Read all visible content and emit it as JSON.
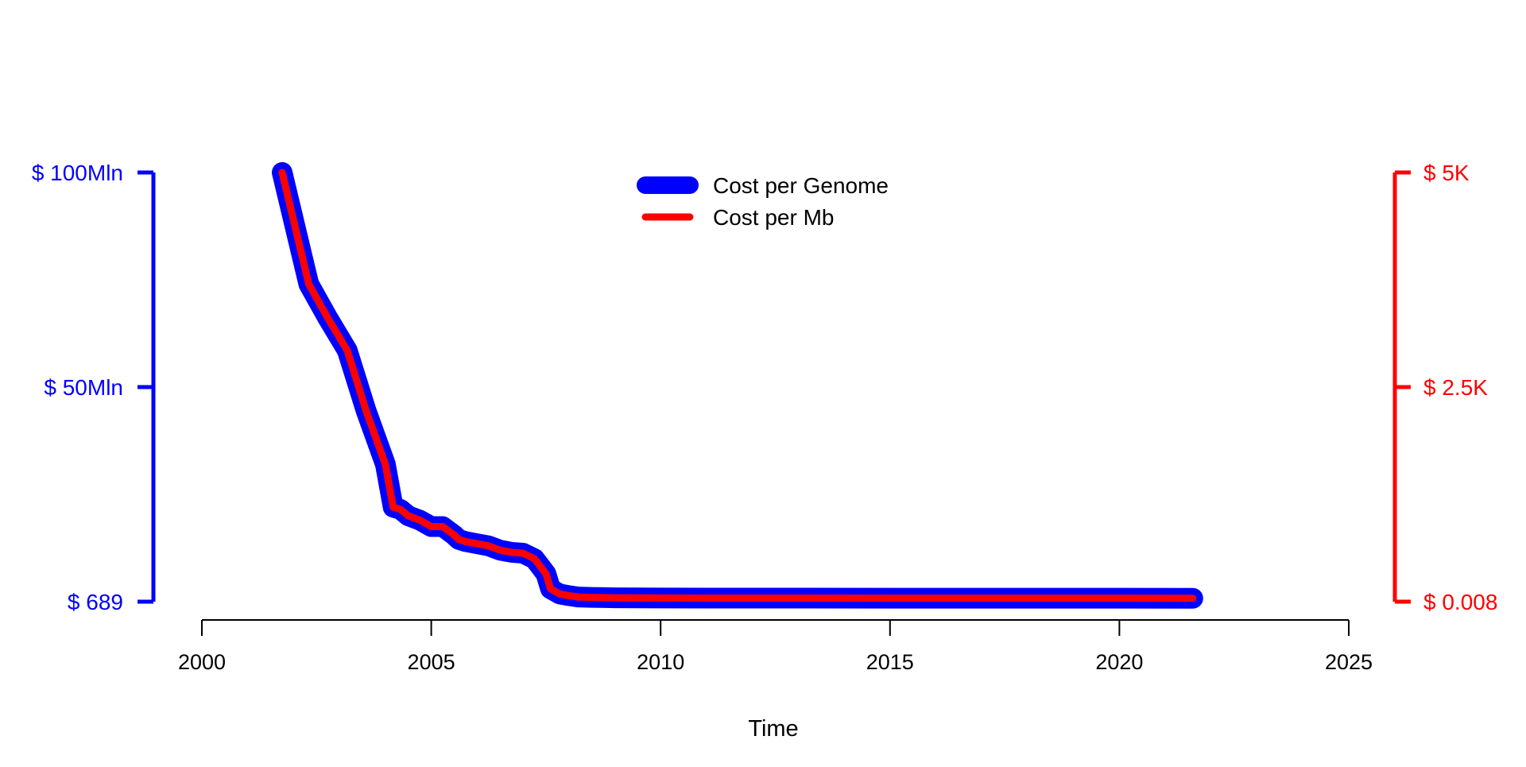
{
  "chart_data": {
    "type": "line",
    "title": "",
    "xlabel": "Time",
    "xlim": [
      2000,
      2025
    ],
    "x_ticks": [
      "2000",
      "2005",
      "2010",
      "2015",
      "2020",
      "2025"
    ],
    "left_axis": {
      "color": "#0000ff",
      "ticks": [
        {
          "label": "$ 100Mln",
          "value": 100000000
        },
        {
          "label": "$ 50Mln",
          "value": 50000000
        },
        {
          "label": "$ 689",
          "value": 689
        }
      ]
    },
    "right_axis": {
      "color": "#ff0000",
      "ticks": [
        {
          "label": "$ 5K",
          "value": 5000
        },
        {
          "label": "$ 2.5K",
          "value": 2500
        },
        {
          "label": "$ 0.008",
          "value": 0.008
        }
      ]
    },
    "legend": {
      "placement": "top-center",
      "entries": [
        {
          "name": "Cost per Genome",
          "color": "#0000ff"
        },
        {
          "name": "Cost per Mb",
          "color": "#ff0000"
        }
      ]
    },
    "x": [
      2001.75,
      2002.33,
      2002.75,
      2003.17,
      2003.58,
      2004.0,
      2004.17,
      2004.33,
      2004.5,
      2004.75,
      2005.0,
      2005.25,
      2005.5,
      2005.6,
      2005.75,
      2006.0,
      2006.25,
      2006.5,
      2006.75,
      2007.0,
      2007.25,
      2007.5,
      2007.6,
      2007.8,
      2008.0,
      2008.2,
      2008.5,
      2009.0,
      2010.0,
      2012.0,
      2015.0,
      2018.0,
      2020.0,
      2021.6
    ],
    "series": [
      {
        "name": "Cost per Genome",
        "color": "#0000ff",
        "values": [
          100000000,
          74000000,
          66000000,
          58500000,
          44500000,
          32000000,
          22000000,
          21500000,
          20000000,
          19000000,
          17500000,
          17500000,
          15500000,
          14500000,
          14000000,
          13500000,
          13000000,
          12000000,
          11500000,
          11300000,
          10000000,
          6500000,
          3000000,
          1800000,
          1400000,
          1100000,
          1000000,
          900000,
          850000,
          830000,
          820000,
          815000,
          810000,
          800000
        ]
      },
      {
        "name": "Cost per Mb",
        "color": "#ff0000",
        "values": [
          5000,
          3700,
          3300,
          2925,
          2225,
          1600,
          1100,
          1075,
          1000,
          950,
          875,
          875,
          775,
          725,
          700,
          675,
          650,
          600,
          575,
          565,
          500,
          325,
          150,
          90,
          70,
          55,
          50,
          45,
          42.5,
          41.5,
          41,
          40.75,
          40.5,
          40
        ]
      }
    ]
  }
}
